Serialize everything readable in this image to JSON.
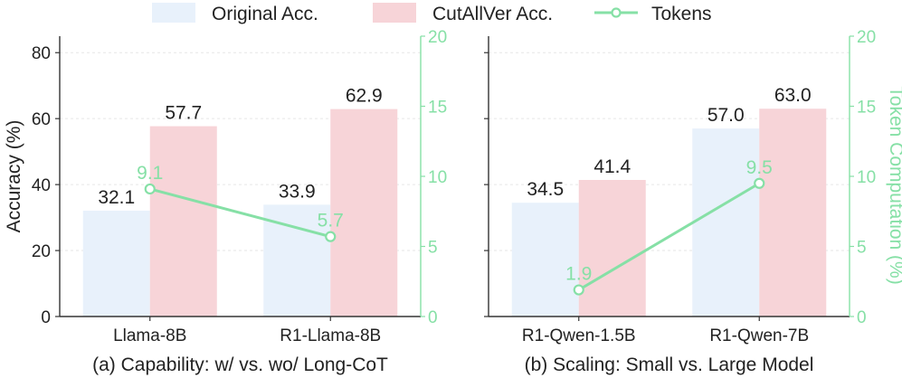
{
  "legend": {
    "original_label": "Original Acc.",
    "cutallver_label": "CutAllVer Acc.",
    "tokens_label": "Tokens"
  },
  "colors": {
    "original": "#e8f1fb",
    "cutallver": "#f7d4d8",
    "tokens": "#86e0a6",
    "axis": "#333333",
    "grid": "#e6e6e6"
  },
  "chart_data": [
    {
      "type": "bar",
      "caption": "(a) Capability: w/ vs. wo/ Long-CoT",
      "categories": [
        "Llama-8B",
        "R1-Llama-8B"
      ],
      "series": [
        {
          "name": "Original Acc.",
          "values": [
            32.1,
            33.9
          ]
        },
        {
          "name": "CutAllVer Acc.",
          "values": [
            57.7,
            62.9
          ]
        }
      ],
      "line_series": {
        "name": "Tokens",
        "values": [
          9.1,
          5.7
        ]
      },
      "ylabel": "Accuracy (%)",
      "ylim": [
        0,
        85
      ],
      "yticks": [
        0,
        20,
        40,
        60,
        80
      ],
      "y2lim": [
        0,
        20
      ],
      "y2ticks": [
        0,
        5,
        10,
        15,
        20
      ],
      "y2label": ""
    },
    {
      "type": "bar",
      "caption": "(b) Scaling: Small vs. Large Model",
      "categories": [
        "R1-Qwen-1.5B",
        "R1-Qwen-7B"
      ],
      "series": [
        {
          "name": "Original Acc.",
          "values": [
            34.5,
            57.0
          ]
        },
        {
          "name": "CutAllVer Acc.",
          "values": [
            41.4,
            63.0
          ]
        }
      ],
      "line_series": {
        "name": "Tokens",
        "values": [
          1.9,
          9.5
        ]
      },
      "ylabel": "",
      "ylim": [
        0,
        85
      ],
      "yticks": [
        0,
        20,
        40,
        60,
        80
      ],
      "y2lim": [
        0,
        20
      ],
      "y2ticks": [
        0,
        5,
        10,
        15,
        20
      ],
      "y2label": "Token Computation (%)"
    }
  ]
}
